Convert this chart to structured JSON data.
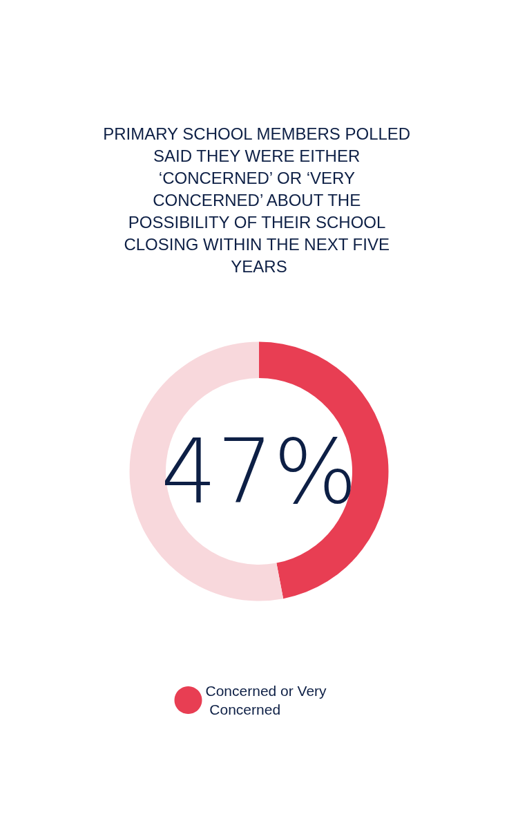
{
  "chart_data": {
    "type": "donut",
    "title": "PRIMARY SCHOOL MEMBERS POLLED SAID THEY WERE EITHER ‘CONCERNED’ OR ‘VERY CONCERNED’ ABOUT THE POSSIBILITY OF THEIR SCHOOL CLOSING WITHIN THE NEXT FIVE YEARS",
    "categories": [
      "Concerned or Very Concerned",
      null
    ],
    "values": [
      47,
      53
    ],
    "colors": [
      "#e83e53",
      "#f8d8dc"
    ],
    "value_labels": [
      "47%",
      null
    ],
    "legend": "bottom"
  }
}
